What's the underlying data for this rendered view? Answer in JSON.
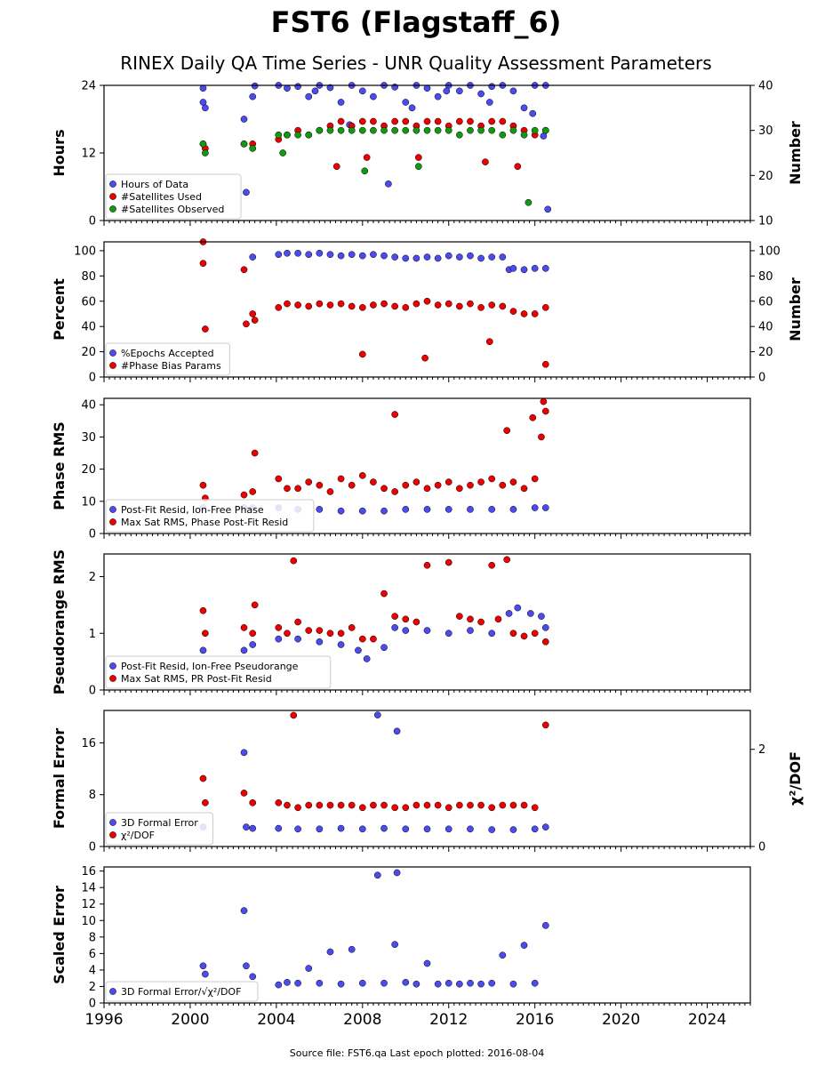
{
  "title": "FST6 (Flagstaff_6)",
  "subtitle": "RINEX Daily QA Time Series - UNR Quality Assessment Parameters",
  "footer": "Source file: FST6.qa Last epoch plotted: 2016-08-04",
  "colors": {
    "blue": "#4b4bf0",
    "red": "#ee0000",
    "green": "#119911",
    "edge": "#000000"
  },
  "chart_data": [
    {
      "type": "scatter",
      "ylabel": "Hours",
      "ylabel_right": "Number",
      "xlim": [
        1996,
        2026
      ],
      "ylim": [
        0,
        24
      ],
      "ylim_right": [
        10,
        40
      ],
      "yticks": [
        "0",
        "12",
        "24"
      ],
      "yticks_right": [
        "10",
        "20",
        "30",
        "40"
      ],
      "legend_position": "lower-left",
      "series": [
        {
          "name": "Hours of Data",
          "color": "blue",
          "axis": "left",
          "x": [
            2000.6,
            2000.6,
            2000.7,
            2002.5,
            2002.6,
            2002.9,
            2003.0,
            2004.1,
            2004.5,
            2005.0,
            2005.5,
            2006.0,
            2006.5,
            2007.0,
            2007.5,
            2008.0,
            2008.5,
            2009.0,
            2009.5,
            2010.0,
            2010.5,
            2011.0,
            2011.5,
            2012.0,
            2012.5,
            2013.0,
            2013.5,
            2014.0,
            2014.5,
            2015.0,
            2015.5,
            2016.0,
            2016.4,
            2016.6,
            2009.2,
            2010.3,
            2005.8,
            2011.9,
            2013.9,
            2015.9,
            2007.4,
            2016.5
          ],
          "y": [
            23.5,
            21,
            20,
            18,
            5,
            22,
            23.9,
            24,
            23.5,
            23.8,
            22,
            24,
            23.6,
            21,
            24,
            23,
            22,
            24,
            23.7,
            21,
            24,
            23.5,
            22,
            24,
            23,
            24,
            22.5,
            23.8,
            24,
            23,
            20,
            24,
            15,
            2,
            6.5,
            20,
            23,
            23,
            21,
            19,
            17,
            24
          ]
        },
        {
          "name": "#Satellites Used",
          "color": "red",
          "axis": "right",
          "x": [
            2000.6,
            2000.7,
            2002.5,
            2002.9,
            2004.1,
            2004.5,
            2005.0,
            2005.5,
            2006.0,
            2006.5,
            2007.0,
            2007.5,
            2008.0,
            2008.5,
            2009.0,
            2009.5,
            2010.0,
            2010.5,
            2011.0,
            2011.5,
            2012.0,
            2012.5,
            2013.0,
            2013.5,
            2014.0,
            2014.5,
            2015.0,
            2015.5,
            2016.0,
            2016.5,
            2006.8,
            2008.2,
            2010.6,
            2013.7,
            2015.2
          ],
          "y": [
            27,
            26,
            27,
            27,
            28,
            29,
            30,
            29,
            30,
            31,
            32,
            31,
            32,
            32,
            31,
            32,
            32,
            31,
            32,
            32,
            31,
            32,
            32,
            31,
            32,
            32,
            31,
            30,
            29,
            30,
            22,
            24,
            24,
            23,
            22
          ]
        },
        {
          "name": "#Satellites Observed",
          "color": "green",
          "axis": "right",
          "x": [
            2000.6,
            2000.7,
            2002.5,
            2002.9,
            2004.1,
            2004.5,
            2005.0,
            2005.5,
            2006.0,
            2006.5,
            2007.0,
            2007.5,
            2008.0,
            2008.5,
            2009.0,
            2009.5,
            2010.0,
            2010.5,
            2011.0,
            2011.5,
            2012.0,
            2012.5,
            2013.0,
            2013.5,
            2014.0,
            2014.5,
            2015.0,
            2015.5,
            2016.0,
            2016.5,
            2004.3,
            2008.1,
            2010.6,
            2015.7
          ],
          "y": [
            27,
            25,
            27,
            26,
            29,
            29,
            29,
            29,
            30,
            30,
            30,
            30,
            30,
            30,
            30,
            30,
            30,
            30,
            30,
            30,
            30,
            29,
            30,
            30,
            30,
            29,
            30,
            29,
            30,
            30,
            25,
            21,
            22,
            14
          ]
        }
      ]
    },
    {
      "type": "scatter",
      "ylabel": "Percent",
      "ylabel_right": "Number",
      "xlim": [
        1996,
        2026
      ],
      "ylim": [
        0,
        107
      ],
      "ylim_right": [
        0,
        107
      ],
      "yticks": [
        "0",
        "20",
        "40",
        "60",
        "80",
        "100"
      ],
      "yticks_right": [
        "0",
        "20",
        "40",
        "60",
        "80",
        "100"
      ],
      "legend_position": "lower-left",
      "series": [
        {
          "name": "%Epochs Accepted",
          "color": "blue",
          "axis": "left",
          "x": [
            2002.9,
            2004.1,
            2004.5,
            2005.0,
            2005.5,
            2006.0,
            2006.5,
            2007.0,
            2007.5,
            2008.0,
            2008.5,
            2009.0,
            2009.5,
            2010.0,
            2010.5,
            2011.0,
            2011.5,
            2012.0,
            2012.5,
            2013.0,
            2013.5,
            2014.0,
            2014.5,
            2014.8,
            2015.0,
            2015.5,
            2016.0,
            2016.5
          ],
          "y": [
            95,
            97,
            98,
            98,
            97,
            98,
            97,
            96,
            97,
            96,
            97,
            96,
            95,
            94,
            94,
            95,
            94,
            96,
            95,
            96,
            94,
            95,
            95,
            85,
            86,
            85,
            86,
            86
          ]
        },
        {
          "name": "#Phase Bias Params",
          "color": "red",
          "axis": "right",
          "x": [
            2000.6,
            2000.6,
            2000.7,
            2002.5,
            2002.6,
            2002.9,
            2003.0,
            2004.1,
            2004.5,
            2005.0,
            2005.5,
            2006.0,
            2006.5,
            2007.0,
            2007.5,
            2008.0,
            2008.5,
            2009.0,
            2009.5,
            2010.0,
            2010.5,
            2011.0,
            2011.5,
            2012.0,
            2012.5,
            2013.0,
            2013.5,
            2014.0,
            2014.5,
            2015.0,
            2015.5,
            2016.0,
            2016.5,
            2008.0,
            2010.9,
            2013.9,
            2016.5
          ],
          "y": [
            107,
            90,
            38,
            85,
            42,
            50,
            45,
            55,
            58,
            57,
            56,
            58,
            57,
            58,
            56,
            55,
            57,
            58,
            56,
            55,
            58,
            60,
            57,
            58,
            56,
            58,
            55,
            57,
            56,
            52,
            50,
            50,
            55,
            18,
            15,
            28,
            10
          ]
        }
      ]
    },
    {
      "type": "scatter",
      "ylabel": "Phase RMS",
      "xlim": [
        1996,
        2026
      ],
      "ylim": [
        0,
        42
      ],
      "yticks": [
        "0",
        "10",
        "20",
        "30",
        "40"
      ],
      "legend_position": "lower-left",
      "series": [
        {
          "name": "Post-Fit Resid, Ion-Free Phase",
          "color": "blue",
          "axis": "left",
          "x": [
            2000.6,
            2002.5,
            2002.9,
            2004.1,
            2005.0,
            2006.0,
            2007.0,
            2008.0,
            2009.0,
            2010.0,
            2011.0,
            2012.0,
            2013.0,
            2014.0,
            2015.0,
            2016.0,
            2016.5
          ],
          "y": [
            8,
            8,
            8,
            8,
            7.5,
            7.5,
            7,
            7,
            7,
            7.5,
            7.5,
            7.5,
            7.5,
            7.5,
            7.5,
            8,
            8
          ]
        },
        {
          "name": "Max Sat RMS, Phase Post-Fit Resid",
          "color": "red",
          "axis": "left",
          "x": [
            2000.6,
            2000.7,
            2002.5,
            2002.9,
            2003.0,
            2004.1,
            2004.5,
            2005.0,
            2005.5,
            2006.0,
            2006.5,
            2007.0,
            2007.5,
            2008.0,
            2008.5,
            2009.0,
            2009.5,
            2010.0,
            2010.5,
            2011.0,
            2011.5,
            2012.0,
            2012.5,
            2013.0,
            2013.5,
            2014.0,
            2014.5,
            2015.0,
            2015.5,
            2016.0,
            2016.4,
            2016.5,
            2009.5,
            2014.7,
            2015.9,
            2016.3
          ],
          "y": [
            15,
            11,
            12,
            13,
            25,
            17,
            14,
            14,
            16,
            15,
            13,
            17,
            15,
            18,
            16,
            14,
            13,
            15,
            16,
            14,
            15,
            16,
            14,
            15,
            16,
            17,
            15,
            16,
            14,
            17,
            41,
            38,
            37,
            32,
            36,
            30
          ]
        }
      ]
    },
    {
      "type": "scatter",
      "ylabel": "Pseudorange RMS",
      "xlim": [
        1996,
        2026
      ],
      "ylim": [
        0,
        2.4
      ],
      "yticks": [
        "0",
        "1",
        "2"
      ],
      "legend_position": "lower-left",
      "series": [
        {
          "name": "Post-Fit Resid, Ion-Free Pseudorange",
          "color": "blue",
          "axis": "left",
          "x": [
            2000.6,
            2002.5,
            2002.9,
            2004.1,
            2005.0,
            2006.0,
            2007.0,
            2007.8,
            2008.2,
            2009.0,
            2009.5,
            2010.0,
            2011.0,
            2012.0,
            2013.0,
            2014.0,
            2014.8,
            2015.2,
            2015.8,
            2016.3,
            2016.5
          ],
          "y": [
            0.7,
            0.7,
            0.8,
            0.9,
            0.9,
            0.85,
            0.8,
            0.7,
            0.55,
            0.75,
            1.1,
            1.05,
            1.05,
            1.0,
            1.05,
            1.0,
            1.35,
            1.45,
            1.35,
            1.3,
            1.1
          ]
        },
        {
          "name": "Max Sat RMS, PR Post-Fit Resid",
          "color": "red",
          "axis": "left",
          "x": [
            2000.6,
            2000.7,
            2002.5,
            2002.9,
            2003.0,
            2004.1,
            2004.5,
            2004.8,
            2005.0,
            2005.5,
            2006.0,
            2006.5,
            2007.0,
            2007.5,
            2008.0,
            2008.5,
            2009.0,
            2009.5,
            2010.0,
            2010.5,
            2011.0,
            2012.0,
            2012.5,
            2013.0,
            2013.5,
            2014.0,
            2014.3,
            2014.7,
            2015.0,
            2015.5,
            2016.0,
            2016.5
          ],
          "y": [
            1.4,
            1.0,
            1.1,
            1.0,
            1.5,
            1.1,
            1.0,
            2.28,
            1.2,
            1.05,
            1.05,
            1.0,
            1.0,
            1.1,
            0.9,
            0.9,
            1.7,
            1.3,
            1.25,
            1.2,
            2.2,
            2.25,
            1.3,
            1.25,
            1.2,
            2.2,
            1.25,
            2.3,
            1.0,
            0.95,
            1.0,
            0.85
          ]
        }
      ]
    },
    {
      "type": "scatter",
      "ylabel": "Formal Error",
      "ylabel_right": "χ²/DOF",
      "xlim": [
        1996,
        2026
      ],
      "ylim": [
        0,
        21
      ],
      "ylim_right": [
        0,
        2.8
      ],
      "yticks": [
        "0",
        "8",
        "16"
      ],
      "yticks_right": [
        "0",
        "2"
      ],
      "legend_position": "lower-left",
      "series": [
        {
          "name": "3D Formal Error",
          "color": "blue",
          "axis": "left",
          "x": [
            2000.6,
            2002.5,
            2002.6,
            2002.9,
            2004.1,
            2005.0,
            2006.0,
            2007.0,
            2008.0,
            2008.7,
            2009.0,
            2009.6,
            2010.0,
            2011.0,
            2012.0,
            2013.0,
            2014.0,
            2015.0,
            2016.0,
            2016.5
          ],
          "y": [
            3,
            14.5,
            3,
            2.8,
            2.8,
            2.7,
            2.7,
            2.8,
            2.7,
            20.3,
            2.8,
            17.8,
            2.7,
            2.7,
            2.7,
            2.7,
            2.6,
            2.6,
            2.7,
            3
          ]
        },
        {
          "name": "χ²/DOF",
          "color": "red",
          "axis": "right",
          "x": [
            2000.6,
            2000.7,
            2002.5,
            2002.9,
            2004.1,
            2004.5,
            2004.8,
            2005.0,
            2005.5,
            2006.0,
            2006.5,
            2007.0,
            2007.5,
            2008.0,
            2008.5,
            2009.0,
            2009.5,
            2010.0,
            2010.5,
            2011.0,
            2011.5,
            2012.0,
            2012.5,
            2013.0,
            2013.5,
            2014.0,
            2014.5,
            2015.0,
            2015.5,
            2016.0,
            2016.5
          ],
          "y": [
            1.4,
            0.9,
            1.1,
            0.9,
            0.9,
            0.85,
            2.7,
            0.8,
            0.85,
            0.85,
            0.85,
            0.85,
            0.85,
            0.8,
            0.85,
            0.85,
            0.8,
            0.8,
            0.85,
            0.85,
            0.85,
            0.8,
            0.85,
            0.85,
            0.85,
            0.8,
            0.85,
            0.85,
            0.85,
            0.8,
            2.5
          ]
        }
      ]
    },
    {
      "type": "scatter",
      "ylabel": "Scaled Error",
      "xlim": [
        1996,
        2026
      ],
      "ylim": [
        0,
        16.5
      ],
      "yticks": [
        "0",
        "2",
        "4",
        "6",
        "8",
        "10",
        "12",
        "14",
        "16"
      ],
      "xticks": [
        "1996",
        "2000",
        "2004",
        "2008",
        "2012",
        "2016",
        "2020",
        "2024"
      ],
      "legend_position": "lower-left",
      "series": [
        {
          "name": "3D Formal Error/√χ²/DOF",
          "color": "blue",
          "axis": "left",
          "x": [
            2000.6,
            2000.7,
            2002.5,
            2002.6,
            2002.9,
            2004.1,
            2004.5,
            2005.0,
            2005.5,
            2006.0,
            2006.5,
            2007.0,
            2007.5,
            2008.0,
            2008.7,
            2009.0,
            2009.5,
            2009.6,
            2010.0,
            2010.5,
            2011.0,
            2011.5,
            2012.0,
            2012.5,
            2013.0,
            2013.5,
            2014.0,
            2014.5,
            2015.0,
            2015.5,
            2016.0,
            2016.5
          ],
          "y": [
            4.5,
            3.5,
            11.2,
            4.5,
            3.2,
            2.2,
            2.5,
            2.4,
            4.2,
            2.4,
            6.2,
            2.3,
            6.5,
            2.4,
            15.5,
            2.4,
            7.1,
            15.8,
            2.5,
            2.3,
            4.8,
            2.3,
            2.4,
            2.3,
            2.4,
            2.3,
            2.4,
            5.8,
            2.3,
            7.0,
            2.4,
            9.4
          ]
        }
      ]
    }
  ]
}
